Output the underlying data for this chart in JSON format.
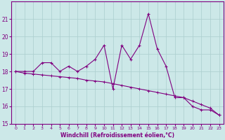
{
  "x": [
    0,
    1,
    2,
    3,
    4,
    5,
    6,
    7,
    8,
    9,
    10,
    11,
    12,
    13,
    14,
    15,
    16,
    17,
    18,
    19,
    20,
    21,
    22,
    23
  ],
  "y_main": [
    18.0,
    18.0,
    18.0,
    18.5,
    18.5,
    18.0,
    18.3,
    18.0,
    18.3,
    18.7,
    19.5,
    17.0,
    19.5,
    18.7,
    19.5,
    21.3,
    19.3,
    18.3,
    16.5,
    16.5,
    16.0,
    15.8,
    15.8,
    15.5
  ],
  "y_trend": [
    18.0,
    17.9,
    17.85,
    17.8,
    17.75,
    17.7,
    17.65,
    17.6,
    17.5,
    17.45,
    17.4,
    17.3,
    17.2,
    17.1,
    17.0,
    16.9,
    16.8,
    16.7,
    16.6,
    16.5,
    16.3,
    16.1,
    15.9,
    15.5
  ],
  "color": "#800080",
  "bg_color": "#cce8e8",
  "grid_color": "#aacece",
  "xlabel": "Windchill (Refroidissement éolien,°C)",
  "ylim": [
    15,
    22
  ],
  "xlim": [
    -0.5,
    23.5
  ],
  "yticks": [
    15,
    16,
    17,
    18,
    19,
    20,
    21
  ],
  "xticks": [
    0,
    1,
    2,
    3,
    4,
    5,
    6,
    7,
    8,
    9,
    10,
    11,
    12,
    13,
    14,
    15,
    16,
    17,
    18,
    19,
    20,
    21,
    22,
    23
  ]
}
